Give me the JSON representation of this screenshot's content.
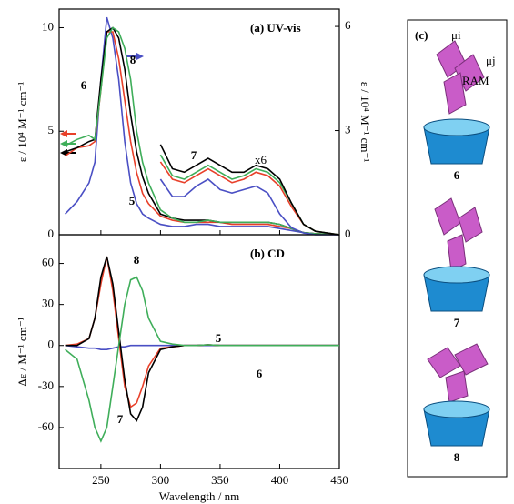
{
  "chart_data": [
    {
      "type": "line",
      "title": "(a) UV-vis",
      "annotation": "x6",
      "ylabel": "ε / 10⁴ M⁻¹ cm⁻¹",
      "y2label": "ε / 10⁴ M⁻¹ cm⁻¹",
      "x": [
        220,
        230,
        240,
        245,
        250,
        255,
        260,
        265,
        270,
        275,
        280,
        285,
        290,
        300,
        310,
        320,
        330,
        340,
        350,
        360,
        370,
        380,
        390,
        400,
        410,
        420,
        430,
        450
      ],
      "xlim": [
        215,
        450
      ],
      "ylim": [
        0,
        10.9
      ],
      "yticks": [
        0,
        5,
        10
      ],
      "y2lim": [
        0,
        6.5
      ],
      "y2ticks": [
        0,
        3,
        6
      ],
      "series": [
        {
          "name": "5",
          "color": "#4a4fc4",
          "values": [
            1.0,
            1.6,
            2.5,
            3.5,
            7.5,
            10.5,
            9.5,
            7.5,
            4.5,
            2.5,
            1.5,
            1.0,
            0.8,
            0.5,
            0.4,
            0.4,
            0.5,
            0.5,
            0.4,
            0.4,
            0.4,
            0.4,
            0.4,
            0.3,
            0.2,
            0.1,
            0.05,
            0
          ]
        },
        {
          "name": "6",
          "color": "#e8402a",
          "values": [
            3.8,
            4.2,
            4.3,
            4.5,
            7.0,
            9.8,
            9.8,
            8.5,
            6.5,
            4.5,
            3.0,
            2.0,
            1.5,
            0.9,
            0.7,
            0.6,
            0.6,
            0.6,
            0.6,
            0.5,
            0.5,
            0.5,
            0.5,
            0.4,
            0.3,
            0.1,
            0.05,
            0
          ]
        },
        {
          "name": "7",
          "color": "#000000",
          "values": [
            4.0,
            4.2,
            4.5,
            4.6,
            7.5,
            9.8,
            10.0,
            9.5,
            8.0,
            5.8,
            4.0,
            2.8,
            2.0,
            1.0,
            0.8,
            0.7,
            0.7,
            0.7,
            0.6,
            0.6,
            0.6,
            0.6,
            0.6,
            0.5,
            0.3,
            0.1,
            0.05,
            0
          ]
        },
        {
          "name": "8",
          "color": "#3fae5a",
          "values": [
            4.3,
            4.6,
            4.8,
            4.6,
            7.0,
            9.5,
            10.0,
            9.8,
            9.0,
            7.5,
            5.0,
            3.5,
            2.5,
            1.2,
            0.8,
            0.6,
            0.6,
            0.7,
            0.6,
            0.6,
            0.6,
            0.6,
            0.6,
            0.5,
            0.3,
            0.1,
            0.05,
            0
          ]
        },
        {
          "axis": "y2",
          "color": "#4a4fc4",
          "values": [
            null,
            null,
            null,
            null,
            null,
            null,
            null,
            null,
            null,
            null,
            null,
            null,
            null,
            1.6,
            1.1,
            1.1,
            1.4,
            1.6,
            1.3,
            1.2,
            1.3,
            1.4,
            1.2,
            0.6,
            0.2,
            0.05,
            0,
            0
          ]
        },
        {
          "axis": "y2",
          "color": "#e8402a",
          "values": [
            null,
            null,
            null,
            null,
            null,
            null,
            null,
            null,
            null,
            null,
            null,
            null,
            null,
            2.1,
            1.6,
            1.5,
            1.7,
            1.9,
            1.7,
            1.5,
            1.6,
            1.8,
            1.7,
            1.4,
            0.8,
            0.3,
            0.1,
            0
          ]
        },
        {
          "axis": "y2",
          "color": "#3fae5a",
          "values": [
            null,
            null,
            null,
            null,
            null,
            null,
            null,
            null,
            null,
            null,
            null,
            null,
            null,
            2.3,
            1.7,
            1.6,
            1.8,
            2.0,
            1.8,
            1.6,
            1.7,
            1.9,
            1.8,
            1.5,
            0.9,
            0.3,
            0.1,
            0
          ]
        },
        {
          "axis": "y2",
          "color": "#000000",
          "values": [
            null,
            null,
            null,
            null,
            null,
            null,
            null,
            null,
            null,
            null,
            null,
            null,
            null,
            2.6,
            1.9,
            1.8,
            2.0,
            2.2,
            2.0,
            1.8,
            1.8,
            2.0,
            1.9,
            1.6,
            0.9,
            0.3,
            0.1,
            0
          ]
        }
      ]
    },
    {
      "type": "line",
      "title": "(b) CD",
      "ylabel": "Δε / M⁻¹ cm⁻¹",
      "xlabel": "Wavelength / nm",
      "x": [
        220,
        230,
        240,
        245,
        250,
        255,
        260,
        265,
        270,
        275,
        280,
        285,
        290,
        300,
        310,
        320,
        330,
        340,
        350,
        360,
        370,
        380,
        390,
        400,
        410,
        420,
        430,
        450
      ],
      "xlim": [
        215,
        450
      ],
      "xticks": [
        250,
        300,
        350,
        400,
        450
      ],
      "ylim": [
        -90,
        81
      ],
      "yticks": [
        -60,
        -30,
        0,
        30,
        60
      ],
      "series": [
        {
          "name": "5",
          "color": "#4a4fc4",
          "values": [
            0,
            -1,
            -2,
            -2,
            -3,
            -3,
            -2,
            -1,
            -1,
            0,
            0,
            0,
            0,
            0,
            0,
            0,
            0,
            0,
            0,
            0,
            0,
            0,
            0,
            0,
            0,
            0,
            0,
            0
          ]
        },
        {
          "name": "6",
          "color": "#e8402a",
          "values": [
            0,
            1,
            5,
            20,
            45,
            65,
            40,
            5,
            -30,
            -45,
            -42,
            -30,
            -15,
            -2,
            -1,
            0,
            0,
            0.5,
            0,
            0,
            0,
            0,
            0,
            0,
            0,
            0,
            0,
            0
          ]
        },
        {
          "name": "7",
          "color": "#000000",
          "values": [
            0,
            0,
            5,
            20,
            50,
            65,
            45,
            10,
            -25,
            -50,
            -55,
            -45,
            -20,
            -3,
            -1,
            0,
            0,
            0.5,
            0,
            0,
            0,
            0,
            0,
            0,
            0,
            0,
            0,
            0
          ]
        },
        {
          "name": "8",
          "color": "#3fae5a",
          "values": [
            -3,
            -10,
            -40,
            -60,
            -70,
            -60,
            -30,
            0,
            30,
            48,
            50,
            40,
            20,
            3,
            1,
            0,
            0,
            0.5,
            0,
            0,
            0,
            0,
            0,
            0,
            0,
            0,
            0,
            0
          ]
        }
      ]
    }
  ],
  "panel_c": {
    "label": "(c)",
    "mu_i": "μi",
    "mu_j": "μj",
    "r_am": "RAM",
    "compounds": [
      "6",
      "7",
      "8"
    ]
  }
}
